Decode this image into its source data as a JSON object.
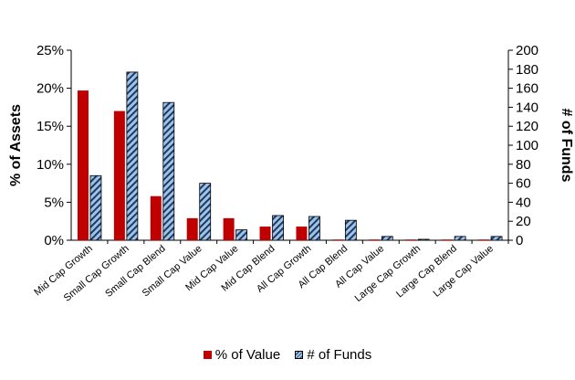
{
  "chart_data": {
    "type": "bar",
    "categories": [
      "Mid Cap Growth",
      "Small Cap Growth",
      "Small Cap Blend",
      "Small Cap Value",
      "Mid Cap Value",
      "Mid Cap Blend",
      "All Cap Growth",
      "All Cap Blend",
      "All Cap Value",
      "Large Cap Growth",
      "Large Cap Blend",
      "Large Cap Value"
    ],
    "series": [
      {
        "name": "% of Value",
        "axis": "left",
        "color": "#c00000",
        "values": [
          19.7,
          17.0,
          5.8,
          2.9,
          2.9,
          1.8,
          1.8,
          0.1,
          0.1,
          0.1,
          0.1,
          0.1
        ]
      },
      {
        "name": "# of Funds",
        "axis": "right",
        "color": "#9dc3e6",
        "pattern": "diagonal-hatch",
        "values": [
          68,
          177,
          145,
          60,
          11,
          26,
          25,
          21,
          4,
          1,
          4,
          4
        ]
      }
    ],
    "ylabel": "% of Assets",
    "y2label": "# of Funds",
    "ylim": [
      0,
      25
    ],
    "y2lim": [
      0,
      200
    ],
    "yticks": [
      "0%",
      "5%",
      "10%",
      "15%",
      "20%",
      "25%"
    ],
    "y2ticks": [
      "0",
      "20",
      "40",
      "60",
      "80",
      "100",
      "120",
      "140",
      "160",
      "180",
      "200"
    ],
    "legend_position": "bottom",
    "grid": false
  }
}
